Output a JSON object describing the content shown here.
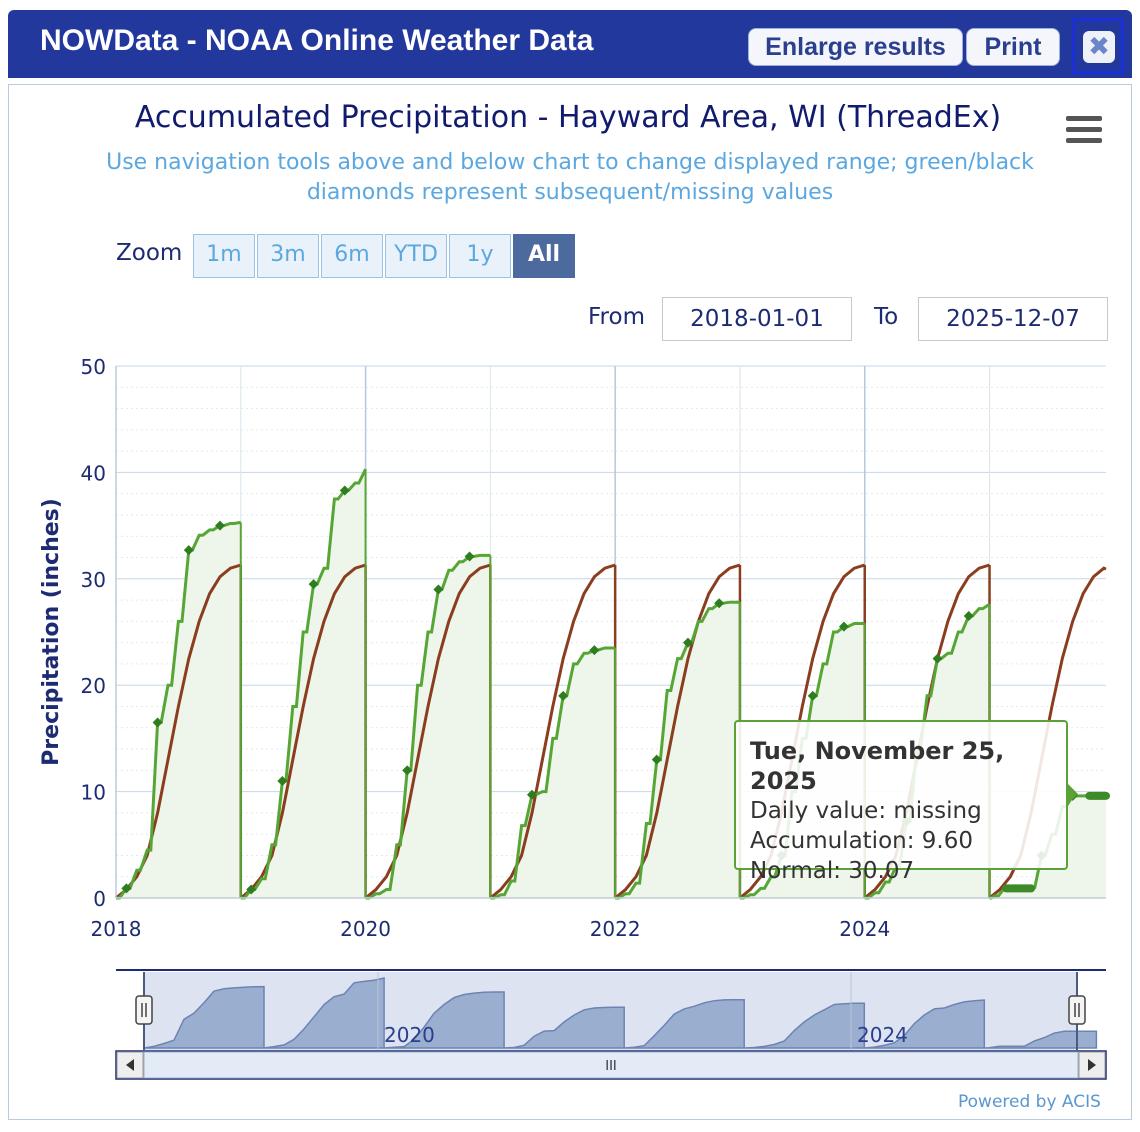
{
  "window": {
    "title": "NOWData - NOAA Online Weather Data",
    "enlarge_label": "Enlarge results",
    "print_label": "Print",
    "close_glyph": "✖"
  },
  "chart_header": {
    "title": "Accumulated Precipitation - Hayward Area, WI (ThreadEx)",
    "subtitle": "Use navigation tools above and below chart to change displayed range; green/black diamonds represent subsequent/missing values"
  },
  "zoom": {
    "label": "Zoom",
    "buttons": [
      "1m",
      "3m",
      "6m",
      "YTD",
      "1y",
      "All"
    ],
    "active": "All"
  },
  "range": {
    "from_label": "From",
    "from_value": "2018-01-01",
    "to_label": "To",
    "to_value": "2025-12-07"
  },
  "tooltip": {
    "date": "Tue, November 25, 2025",
    "daily": "Daily value: missing",
    "accumulation": "Accumulation: 9.60",
    "normal": "Normal: 30.07"
  },
  "navigator": {
    "labels": [
      "2020",
      "2024"
    ],
    "scroll_grip": "III"
  },
  "footer": {
    "powered_by": "Powered by ACIS"
  },
  "colors": {
    "observed": "#56a636",
    "normal": "#8b3e1f",
    "fill": "#eef5ea",
    "grid": "#c7d7e6",
    "axis_text": "#1d2b73"
  },
  "chart_data": {
    "type": "line",
    "ylabel": "Precipitation (inches)",
    "xlim": [
      "2018-01-01",
      "2025-12-07"
    ],
    "ylim": [
      0,
      50
    ],
    "y_ticks": [
      0,
      10,
      20,
      30,
      40,
      50
    ],
    "x_tick_labels": [
      "2018",
      "2020",
      "2022",
      "2024"
    ],
    "grid": true,
    "normal_annual_total": 31.3,
    "series": [
      {
        "name": "Accumulation",
        "years": [
          {
            "year": 2018,
            "points": [
              [
                0,
                0
              ],
              [
                1,
                0.9
              ],
              [
                2,
                2.6
              ],
              [
                3,
                4.5
              ],
              [
                4,
                16.5
              ],
              [
                5,
                20
              ],
              [
                6,
                26
              ],
              [
                7,
                32.7
              ],
              [
                8,
                34.1
              ],
              [
                9,
                34.6
              ],
              [
                10,
                35.0
              ],
              [
                11,
                35.2
              ],
              [
                12,
                35.3
              ]
            ]
          },
          {
            "year": 2019,
            "points": [
              [
                0,
                0
              ],
              [
                1,
                0.8
              ],
              [
                2,
                1.8
              ],
              [
                3,
                5
              ],
              [
                4,
                11
              ],
              [
                5,
                18
              ],
              [
                6,
                25
              ],
              [
                7,
                29.5
              ],
              [
                8,
                31
              ],
              [
                9,
                37.5
              ],
              [
                10,
                38.3
              ],
              [
                11,
                39
              ],
              [
                12,
                40.3
              ]
            ]
          },
          {
            "year": 2020,
            "points": [
              [
                0,
                0
              ],
              [
                1,
                0.4
              ],
              [
                2,
                0.8
              ],
              [
                3,
                5
              ],
              [
                4,
                12
              ],
              [
                5,
                20
              ],
              [
                6,
                25
              ],
              [
                7,
                29
              ],
              [
                8,
                30.8
              ],
              [
                9,
                31.6
              ],
              [
                10,
                32.1
              ],
              [
                11,
                32.2
              ],
              [
                12,
                32.2
              ]
            ]
          },
          {
            "year": 2021,
            "points": [
              [
                0,
                0
              ],
              [
                1,
                0.3
              ],
              [
                2,
                1.6
              ],
              [
                3,
                6.8
              ],
              [
                4,
                9.7
              ],
              [
                5,
                10
              ],
              [
                6,
                15
              ],
              [
                7,
                19
              ],
              [
                8,
                22
              ],
              [
                9,
                23
              ],
              [
                10,
                23.3
              ],
              [
                11,
                23.5
              ],
              [
                12,
                23.5
              ]
            ]
          },
          {
            "year": 2022,
            "points": [
              [
                0,
                0
              ],
              [
                1,
                0.4
              ],
              [
                2,
                1.4
              ],
              [
                3,
                7
              ],
              [
                4,
                13
              ],
              [
                5,
                19.5
              ],
              [
                6,
                22.5
              ],
              [
                7,
                24
              ],
              [
                8,
                26
              ],
              [
                9,
                27.2
              ],
              [
                10,
                27.7
              ],
              [
                11,
                27.8
              ],
              [
                12,
                27.8
              ]
            ]
          },
          {
            "year": 2023,
            "points": [
              [
                0,
                0
              ],
              [
                1,
                0.3
              ],
              [
                2,
                0.9
              ],
              [
                3,
                2
              ],
              [
                4,
                4
              ],
              [
                5,
                10
              ],
              [
                6,
                15
              ],
              [
                7,
                19
              ],
              [
                8,
                22
              ],
              [
                9,
                25
              ],
              [
                10,
                25.5
              ],
              [
                11,
                25.8
              ],
              [
                12,
                25.8
              ]
            ]
          },
          {
            "year": 2024,
            "points": [
              [
                0,
                0
              ],
              [
                1,
                0.5
              ],
              [
                2,
                1.5
              ],
              [
                3,
                3
              ],
              [
                4,
                7.2
              ],
              [
                5,
                14
              ],
              [
                6,
                19
              ],
              [
                7,
                22.5
              ],
              [
                8,
                23
              ],
              [
                9,
                25
              ],
              [
                10,
                26.5
              ],
              [
                11,
                27.2
              ],
              [
                12,
                27.6
              ]
            ]
          },
          {
            "year": 2025,
            "points": [
              [
                0,
                0
              ],
              [
                0.5,
                0.2
              ],
              [
                1.5,
                1
              ],
              [
                4,
                1
              ],
              [
                5,
                4
              ],
              [
                6,
                6
              ],
              [
                7,
                8.6
              ],
              [
                8,
                9.6
              ],
              [
                11.2,
                9.6
              ]
            ]
          }
        ]
      },
      {
        "name": "Normal",
        "annual_shape": [
          [
            0,
            0
          ],
          [
            1,
            0.8
          ],
          [
            2,
            2
          ],
          [
            3,
            4
          ],
          [
            4,
            8
          ],
          [
            5,
            13
          ],
          [
            6,
            18
          ],
          [
            7,
            22.5
          ],
          [
            8,
            26
          ],
          [
            9,
            28.6
          ],
          [
            10,
            30.2
          ],
          [
            11,
            31
          ],
          [
            12,
            31.3
          ]
        ]
      }
    ]
  }
}
